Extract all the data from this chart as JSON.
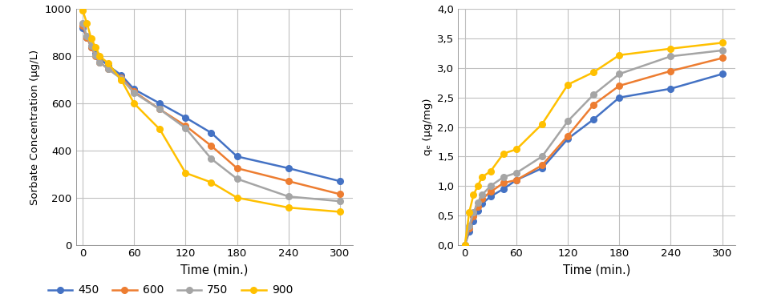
{
  "time": [
    0,
    5,
    10,
    15,
    20,
    30,
    45,
    60,
    90,
    120,
    150,
    180,
    240,
    300
  ],
  "left_chart": {
    "xlabel": "Time (min.)",
    "ylabel": "Sorbate Concentration (μg/L)",
    "ylim": [
      0,
      1000
    ],
    "yticks": [
      0,
      200,
      400,
      600,
      800,
      1000
    ],
    "xticks": [
      0,
      60,
      120,
      180,
      240,
      300
    ],
    "xlim": [
      -8,
      315
    ],
    "series": {
      "450": [
        920,
        880,
        840,
        810,
        790,
        760,
        720,
        660,
        600,
        540,
        475,
        375,
        325,
        270
      ],
      "600": [
        930,
        880,
        840,
        800,
        775,
        745,
        710,
        650,
        575,
        505,
        420,
        325,
        270,
        215
      ],
      "750": [
        940,
        885,
        845,
        805,
        775,
        745,
        705,
        645,
        575,
        495,
        365,
        280,
        205,
        185
      ],
      "900": [
        995,
        940,
        875,
        840,
        800,
        770,
        700,
        600,
        490,
        305,
        265,
        200,
        158,
        140
      ]
    }
  },
  "right_chart": {
    "xlabel": "Time (min.)",
    "ylabel": "qₑ (μg/mg)",
    "ylim": [
      0.0,
      4.0
    ],
    "yticks": [
      0.0,
      0.5,
      1.0,
      1.5,
      2.0,
      2.5,
      3.0,
      3.5,
      4.0
    ],
    "xticks": [
      0,
      60,
      120,
      180,
      240,
      300
    ],
    "xlim": [
      -8,
      315
    ],
    "series": {
      "450": [
        0.0,
        0.22,
        0.4,
        0.58,
        0.7,
        0.82,
        0.95,
        1.1,
        1.3,
        1.8,
        2.13,
        2.5,
        2.65,
        2.9
      ],
      "600": [
        0.0,
        0.28,
        0.48,
        0.65,
        0.78,
        0.9,
        1.05,
        1.1,
        1.35,
        1.85,
        2.38,
        2.7,
        2.95,
        3.17
      ],
      "750": [
        0.0,
        0.32,
        0.55,
        0.72,
        0.85,
        1.0,
        1.15,
        1.22,
        1.5,
        2.1,
        2.55,
        2.9,
        3.2,
        3.3
      ],
      "900": [
        0.0,
        0.55,
        0.85,
        1.0,
        1.15,
        1.25,
        1.55,
        1.62,
        2.05,
        2.72,
        2.93,
        3.22,
        3.33,
        3.43
      ]
    }
  },
  "colors": {
    "450": "#4472C4",
    "600": "#ED7D31",
    "750": "#A5A5A5",
    "900": "#FFC000"
  },
  "legend_labels": [
    "450",
    "600",
    "750",
    "900"
  ],
  "marker": "o",
  "linewidth": 1.8,
  "markersize": 5.5,
  "figsize": [
    9.45,
    3.82
  ],
  "dpi": 100
}
